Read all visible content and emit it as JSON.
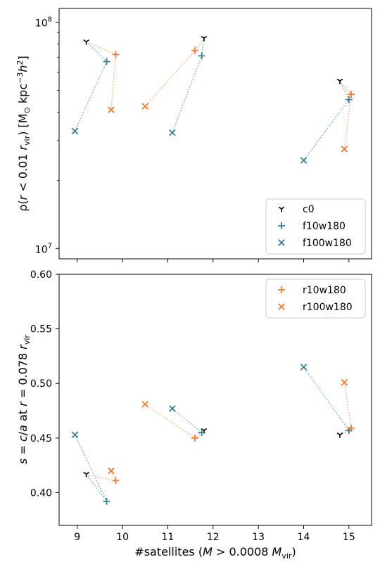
{
  "chart_data": [
    {
      "type": "scatter",
      "ylabel": "ρ(r < 0.01 r_vir) [M⊙ kpc⁻³ h²]",
      "yscale": "log",
      "ylim": [
        9000000,
        115000000
      ],
      "xlim": [
        8.6,
        15.5
      ],
      "yticks": [
        {
          "value": 10000000,
          "base": "10",
          "exp": "7"
        },
        {
          "value": 100000000,
          "base": "10",
          "exp": "8"
        }
      ],
      "legend": {
        "position": "lower-right",
        "entries": [
          "c0",
          "f10w180",
          "f100w180"
        ]
      },
      "ylabel_parts": {
        "rho": "ρ",
        "open": "(",
        "r": "r",
        "lt": " < 0.01 ",
        "r2": "r",
        "vir": "vir",
        "close": ") [M",
        "odot": "⊙",
        "kpc": " kpc",
        "m3": "−3",
        "h": "h",
        "two": "2",
        "end": "]"
      },
      "groups": [
        {
          "c0": [
            9.2,
            82000000
          ],
          "f10w180": [
            9.65,
            67000000
          ],
          "f100w180": [
            8.95,
            33000000
          ],
          "r10w180": [
            9.85,
            72000000
          ],
          "r100w180": [
            9.75,
            41000000
          ]
        },
        {
          "c0": [
            11.8,
            85000000
          ],
          "f10w180": [
            11.75,
            71000000
          ],
          "f100w180": [
            11.1,
            32500000
          ],
          "r10w180": [
            11.6,
            75000000
          ],
          "r100w180": [
            10.5,
            42500000
          ]
        },
        {
          "c0": [
            14.8,
            55000000
          ],
          "f10w180": [
            15.0,
            45500000
          ],
          "f100w180": [
            14.0,
            24500000
          ],
          "r10w180": [
            15.05,
            48000000
          ],
          "r100w180": [
            14.9,
            27500000
          ]
        }
      ]
    },
    {
      "type": "scatter",
      "ylabel": "s = c/a at r = 0.078 r_vir",
      "xlabel": "#satellites (M > 0.0008 M_vir)",
      "ylim": [
        0.37,
        0.6
      ],
      "xlim": [
        8.6,
        15.5
      ],
      "yticks": [
        "0.40",
        "0.45",
        "0.50",
        "0.55",
        "0.60"
      ],
      "xticks": [
        "9",
        "10",
        "11",
        "12",
        "13",
        "14",
        "15"
      ],
      "legend": {
        "position": "upper-right",
        "entries": [
          "r10w180",
          "r100w180"
        ]
      },
      "ylabel_parts": {
        "s": "s",
        "eq": " = ",
        "c": "c",
        "slash": "/",
        "a": "a",
        "at": " at ",
        "r": "r",
        "val": " = 0.078 ",
        "r2": "r",
        "vir": "vir"
      },
      "xlabel_parts": {
        "pre": "#satellites (",
        "M": "M",
        "gt": " > 0.0008 ",
        "M2": "M",
        "vir": "vir",
        "close": ")"
      },
      "groups": [
        {
          "c0": [
            9.2,
            0.417
          ],
          "f10w180": [
            9.65,
            0.392
          ],
          "f100w180": [
            8.95,
            0.453
          ],
          "r10w180": [
            9.85,
            0.411
          ],
          "r100w180": [
            9.75,
            0.42
          ]
        },
        {
          "c0": [
            11.8,
            0.457
          ],
          "f10w180": [
            11.75,
            0.455
          ],
          "f100w180": [
            11.1,
            0.477
          ],
          "r10w180": [
            11.6,
            0.45
          ],
          "r100w180": [
            10.5,
            0.481
          ]
        },
        {
          "c0": [
            14.8,
            0.453
          ],
          "f10w180": [
            15.0,
            0.457
          ],
          "f100w180": [
            14.0,
            0.515
          ],
          "r10w180": [
            15.05,
            0.459
          ],
          "r100w180": [
            14.9,
            0.501
          ]
        }
      ]
    }
  ],
  "colors": {
    "c0": "#000000",
    "f": "#3a7d9c",
    "r": "#f07a32",
    "link_f": "#5a9fb8",
    "link_r": "#f5a26b"
  }
}
